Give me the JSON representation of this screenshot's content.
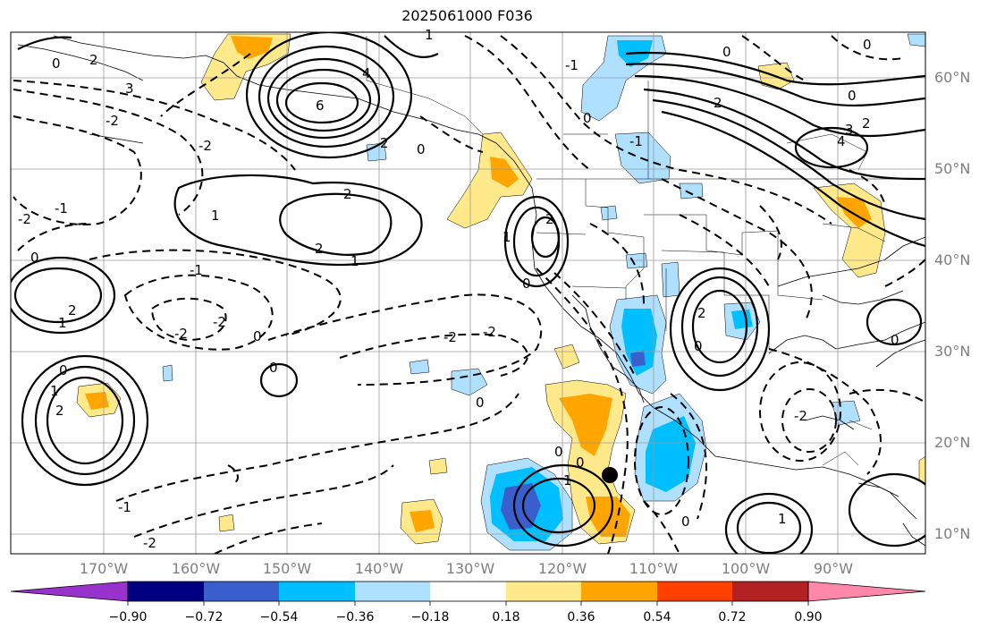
{
  "title": "2025061000 F036",
  "lat_labels": [
    "60°N",
    "50°N",
    "40°N",
    "30°N",
    "20°N",
    "10°N"
  ],
  "lon_labels": [
    "170°W",
    "160°W",
    "150°W",
    "140°W",
    "130°W",
    "120°W",
    "110°W",
    "100°W",
    "90°W"
  ],
  "colorbar": {
    "colors": [
      "#9932cc",
      "#000080",
      "#3a5fcd",
      "#00bfff",
      "#b0e0ff",
      "#ffffff",
      "#ffe98a",
      "#ffa500",
      "#ff4000",
      "#b22222",
      "#ff88aa"
    ],
    "tick_labels": [
      "−0.90",
      "−0.72",
      "−0.54",
      "−0.36",
      "−0.18",
      "0.18",
      "0.36",
      "0.54",
      "0.72",
      "0.90"
    ]
  },
  "contour_labels": [
    "0",
    "1",
    "2",
    "3",
    "4",
    "6",
    "-1",
    "-2"
  ],
  "marker": "storm-center-dot"
}
